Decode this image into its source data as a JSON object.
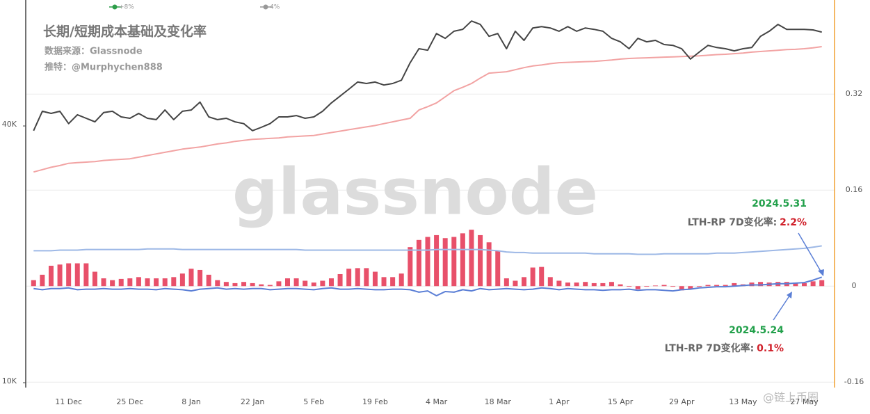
{
  "chart_data": {
    "type": "combo",
    "title": "长期/短期成本基础及变化率",
    "subtitle": [
      "数据来源：Glassnode",
      "推特：@Murphychen888"
    ],
    "watermark": "glassnode",
    "corner_watermark": "@链上币圈",
    "legend": [
      {
        "label": "+8%",
        "color": "#2e9e4a"
      },
      {
        "label": "4%",
        "color": "#999999"
      }
    ],
    "categories": [
      null,
      null,
      null,
      null,
      "11 Dec",
      null,
      null,
      null,
      null,
      null,
      null,
      "25 Dec",
      null,
      null,
      null,
      null,
      null,
      null,
      "8 Jan",
      null,
      null,
      null,
      null,
      null,
      null,
      "22 Jan",
      null,
      null,
      null,
      null,
      null,
      null,
      "5 Feb",
      null,
      null,
      null,
      null,
      null,
      null,
      "19 Feb",
      null,
      null,
      null,
      null,
      null,
      null,
      "4 Mar",
      null,
      null,
      null,
      null,
      null,
      null,
      "18 Mar",
      null,
      null,
      null,
      null,
      null,
      null,
      "1 Apr",
      null,
      null,
      null,
      null,
      null,
      null,
      "15 Apr",
      null,
      null,
      null,
      null,
      null,
      null,
      "29 Apr",
      null,
      null,
      null,
      null,
      null,
      null,
      "13 May",
      null,
      null,
      null,
      null,
      null,
      null,
      "27 May",
      null,
      null
    ],
    "ylog": true,
    "ylim": [
      9.74,
      77.5
    ],
    "yticks": [
      {
        "value": 10,
        "label": "10K"
      },
      {
        "value": 40,
        "label": "40K"
      }
    ],
    "y2lim": [
      -0.169,
      0.471
    ],
    "y2ticks": [
      -0.16,
      0,
      0.16,
      0.32
    ],
    "grid": true,
    "series": [
      {
        "type": "bar",
        "axis": "y2",
        "color": "#e8506a",
        "values": [
          0.01,
          0.019,
          0.034,
          0.036,
          0.038,
          0.038,
          0.038,
          0.024,
          0.013,
          0.01,
          0.012,
          0.013,
          0.015,
          0.013,
          0.013,
          0.013,
          0.015,
          0.021,
          0.029,
          0.027,
          0.019,
          0.01,
          0.007,
          0.005,
          0.007,
          0.005,
          0.003,
          0.002,
          0.008,
          0.013,
          0.013,
          0.009,
          0.006,
          0.009,
          0.013,
          0.02,
          0.029,
          0.03,
          0.03,
          0.024,
          0.015,
          0.015,
          0.021,
          0.065,
          0.077,
          0.082,
          0.085,
          0.08,
          0.082,
          0.088,
          0.094,
          0.085,
          0.073,
          0.059,
          0.013,
          0.009,
          0.015,
          0.031,
          0.032,
          0.015,
          0.009,
          0.006,
          0.006,
          0.007,
          0.005,
          0.005,
          0.007,
          0.003,
          -0.001,
          -0.005,
          -0.001,
          0.001,
          0.002,
          -0.001,
          -0.007,
          -0.005,
          -0.001,
          0.002,
          0.002,
          0.002,
          0.005,
          0.003,
          0.006,
          0.007,
          0.006,
          0.007,
          0.007,
          0.006,
          0.005,
          0.008,
          0.01
        ]
      },
      {
        "type": "line",
        "axis": "y",
        "color": "#f2a3a3",
        "values": [
          31.2,
          31.6,
          32.0,
          32.3,
          32.7,
          32.8,
          32.9,
          33.0,
          33.2,
          33.3,
          33.4,
          33.5,
          33.8,
          34.1,
          34.4,
          34.7,
          35.0,
          35.3,
          35.5,
          35.7,
          36.0,
          36.3,
          36.5,
          36.8,
          37.0,
          37.2,
          37.3,
          37.4,
          37.5,
          37.7,
          37.8,
          37.9,
          38.0,
          38.3,
          38.6,
          38.9,
          39.2,
          39.5,
          39.8,
          40.1,
          40.5,
          40.9,
          41.3,
          41.7,
          43.6,
          44.4,
          45.3,
          46.8,
          48.4,
          49.3,
          50.3,
          51.8,
          53.2,
          53.4,
          53.6,
          54.2,
          54.8,
          55.3,
          55.6,
          56.0,
          56.3,
          56.4,
          56.5,
          56.6,
          56.7,
          56.9,
          57.1,
          57.4,
          57.6,
          57.7,
          57.8,
          57.9,
          58.0,
          58.1,
          58.2,
          58.3,
          58.4,
          58.6,
          58.8,
          58.9,
          59.1,
          59.3,
          59.6,
          59.8,
          60.0,
          60.2,
          60.4,
          60.5,
          60.7,
          61.0,
          61.4
        ]
      },
      {
        "type": "line",
        "axis": "y",
        "color": "#444444",
        "values": [
          39.0,
          43.3,
          42.8,
          43.3,
          40.5,
          42.5,
          41.7,
          40.9,
          43.0,
          43.3,
          42.0,
          41.7,
          42.8,
          41.7,
          41.4,
          43.6,
          41.4,
          43.3,
          43.6,
          45.5,
          42.0,
          41.4,
          41.7,
          40.9,
          40.5,
          39.0,
          39.7,
          40.5,
          42.0,
          42.0,
          42.3,
          41.7,
          42.0,
          43.3,
          45.3,
          47.0,
          48.8,
          50.7,
          50.3,
          50.7,
          49.9,
          50.3,
          51.2,
          56.3,
          60.7,
          60.2,
          65.9,
          64.2,
          66.7,
          67.4,
          70.5,
          69.2,
          64.9,
          65.9,
          60.7,
          66.7,
          63.5,
          67.9,
          68.4,
          67.9,
          66.7,
          68.4,
          66.7,
          67.9,
          67.4,
          66.7,
          64.2,
          63.0,
          60.7,
          64.2,
          63.0,
          63.5,
          62.1,
          61.8,
          60.7,
          57.4,
          59.6,
          61.8,
          61.1,
          60.7,
          60.0,
          60.7,
          61.1,
          64.9,
          66.7,
          69.2,
          67.4,
          67.4,
          67.4,
          67.2,
          66.4
        ]
      },
      {
        "type": "line",
        "axis": "y2",
        "color": "#9db8e6",
        "values": [
          0.059,
          0.059,
          0.059,
          0.06,
          0.06,
          0.06,
          0.061,
          0.061,
          0.061,
          0.061,
          0.061,
          0.061,
          0.061,
          0.062,
          0.062,
          0.062,
          0.062,
          0.061,
          0.061,
          0.061,
          0.061,
          0.061,
          0.061,
          0.061,
          0.061,
          0.061,
          0.061,
          0.061,
          0.061,
          0.061,
          0.061,
          0.06,
          0.06,
          0.06,
          0.06,
          0.06,
          0.06,
          0.06,
          0.06,
          0.06,
          0.06,
          0.06,
          0.06,
          0.06,
          0.06,
          0.06,
          0.061,
          0.061,
          0.061,
          0.061,
          0.061,
          0.061,
          0.06,
          0.059,
          0.057,
          0.056,
          0.056,
          0.055,
          0.055,
          0.055,
          0.055,
          0.055,
          0.055,
          0.055,
          0.054,
          0.054,
          0.054,
          0.054,
          0.054,
          0.053,
          0.053,
          0.053,
          0.054,
          0.054,
          0.054,
          0.054,
          0.054,
          0.054,
          0.055,
          0.055,
          0.055,
          0.056,
          0.057,
          0.058,
          0.059,
          0.06,
          0.061,
          0.062,
          0.063,
          0.065,
          0.067
        ]
      },
      {
        "type": "line",
        "axis": "y2",
        "color": "#5b7fd6",
        "values": [
          -0.004,
          -0.006,
          -0.004,
          -0.004,
          -0.003,
          -0.006,
          -0.005,
          -0.005,
          -0.004,
          -0.005,
          -0.005,
          -0.004,
          -0.005,
          -0.005,
          -0.006,
          -0.004,
          -0.005,
          -0.006,
          -0.008,
          -0.005,
          -0.004,
          -0.003,
          -0.005,
          -0.004,
          -0.005,
          -0.004,
          -0.004,
          -0.006,
          -0.005,
          -0.004,
          -0.004,
          -0.005,
          -0.006,
          -0.004,
          -0.003,
          -0.005,
          -0.005,
          -0.004,
          -0.005,
          -0.006,
          -0.006,
          -0.005,
          -0.005,
          -0.006,
          -0.01,
          -0.008,
          -0.016,
          -0.009,
          -0.01,
          -0.006,
          -0.008,
          -0.004,
          -0.006,
          -0.005,
          -0.004,
          -0.005,
          -0.006,
          -0.005,
          -0.003,
          -0.004,
          -0.006,
          -0.004,
          -0.005,
          -0.006,
          -0.006,
          -0.007,
          -0.006,
          -0.006,
          -0.005,
          -0.007,
          -0.006,
          -0.006,
          -0.007,
          -0.008,
          -0.006,
          -0.005,
          -0.003,
          -0.002,
          -0.001,
          -0.001,
          0.0,
          0.001,
          0.002,
          0.002,
          0.003,
          0.004,
          0.004,
          0.005,
          0.006,
          0.01,
          0.015
        ]
      }
    ],
    "annotations": [
      {
        "date": "2024.5.31",
        "label": "LTH-RP 7D变化率:",
        "value_text": "2.2%"
      },
      {
        "date": "2024.5.24",
        "label": "LTH-RP 7D变化率:",
        "value_text": "0.1%"
      }
    ]
  }
}
